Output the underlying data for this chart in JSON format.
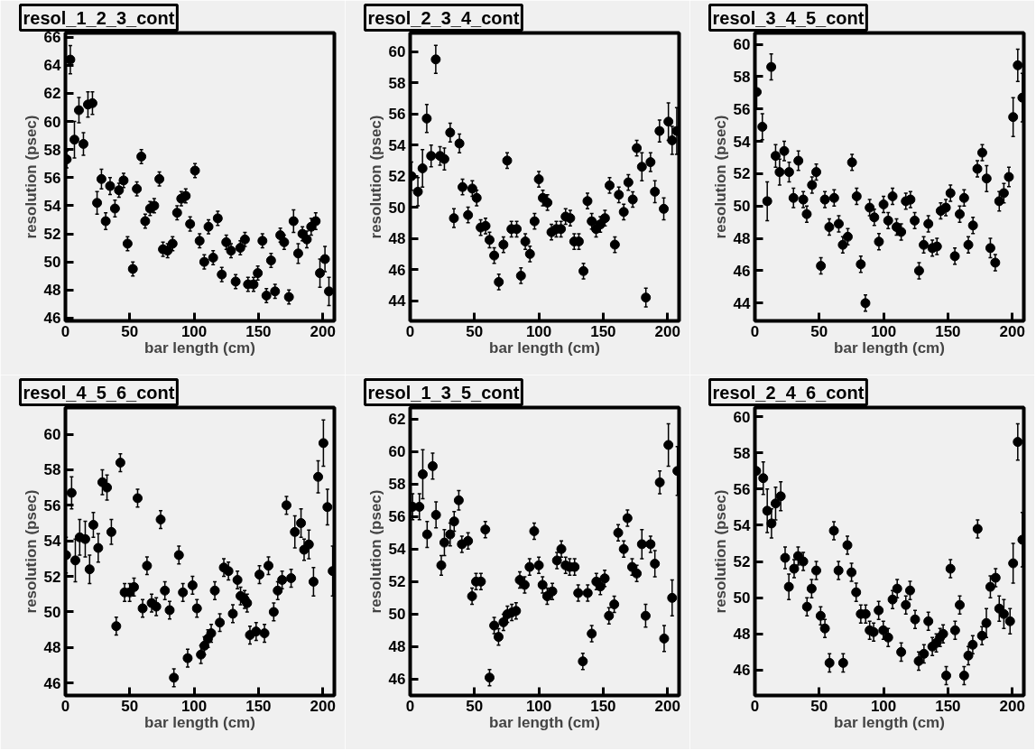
{
  "chart_data": [
    {
      "type": "scatter",
      "title": "resol_1_2_3_cont",
      "xlabel": "bar length (cm)",
      "ylabel": "resolution (psec)",
      "xlim": [
        0,
        209
      ],
      "xticks": [
        0,
        50,
        100,
        150,
        200
      ],
      "ylim": [
        45.8,
        66.3
      ],
      "yticks": [
        46,
        48,
        50,
        52,
        54,
        56,
        58,
        60,
        62,
        64,
        66
      ],
      "marker": "circle",
      "x": [
        1,
        3.8,
        7,
        10.5,
        14,
        17.5,
        21,
        24.6,
        28,
        31.3,
        34.7,
        38.5,
        41.6,
        45.2,
        48.3,
        52.4,
        55.5,
        59,
        62,
        65.8,
        69,
        73,
        75.8,
        79.4,
        83.3,
        86.8,
        90,
        93.5,
        96.9,
        100.7,
        104.3,
        107.9,
        111.2,
        114.8,
        118.4,
        121.5,
        125,
        128.7,
        132.3,
        135.9,
        139.5,
        141.9,
        146.2,
        149.5,
        153.1,
        156.2,
        159.8,
        162.9,
        167,
        170,
        173.7,
        177.3,
        180.9,
        184.2,
        187.6,
        191,
        194.5,
        197.8,
        201.7,
        204.8
      ],
      "series": [
        {
          "color": "#000000",
          "values": [
            57.3,
            64.4,
            58.7,
            60.8,
            58.4,
            61.2,
            61.3,
            54.2,
            55.9,
            52.9,
            55.4,
            53.8,
            55.1,
            55.8,
            51.3,
            49.5,
            55.2,
            57.5,
            52.9,
            53.8,
            54,
            55.9,
            50.9,
            50.8,
            51.3,
            53.5,
            54.5,
            54.7,
            52.7,
            56.5,
            51.5,
            50,
            52.5,
            50.3,
            53.1,
            49.1,
            51.4,
            50.8,
            48.6,
            51,
            51.6,
            48.4,
            48.4,
            49.2,
            51.5,
            47.6,
            50.1,
            47.9,
            51.9,
            51.4,
            47.5,
            52.9,
            50.6,
            52,
            51.6,
            52.5,
            52.9,
            49.2,
            50.2,
            47.9
          ],
          "errors": [
            0.6,
            1.0,
            1.3,
            0.9,
            0.8,
            0.9,
            0.8,
            0.8,
            0.7,
            0.6,
            0.6,
            0.6,
            0.5,
            0.5,
            0.5,
            0.5,
            0.5,
            0.5,
            0.5,
            0.5,
            0.5,
            0.5,
            0.5,
            0.5,
            0.5,
            0.5,
            0.5,
            0.5,
            0.5,
            0.5,
            0.5,
            0.5,
            0.5,
            0.5,
            0.5,
            0.5,
            0.5,
            0.5,
            0.5,
            0.5,
            0.5,
            0.5,
            0.5,
            0.5,
            0.5,
            0.5,
            0.5,
            0.5,
            0.5,
            0.5,
            0.5,
            0.8,
            0.7,
            0.5,
            0.6,
            0.6,
            0.6,
            1.0,
            0.9,
            1.0
          ]
        }
      ]
    },
    {
      "type": "scatter",
      "title": "resol_2_3_4_cont",
      "xlabel": "bar length (cm)",
      "ylabel": "resolution (psec)",
      "xlim": [
        0,
        209
      ],
      "xticks": [
        0,
        50,
        100,
        150,
        200
      ],
      "ylim": [
        42.7,
        61.2
      ],
      "yticks": [
        44,
        46,
        48,
        50,
        52,
        54,
        56,
        58,
        60
      ],
      "marker": "circle",
      "x": [
        1,
        6,
        9.6,
        12.9,
        16.3,
        19.9,
        23.2,
        26.6,
        31.1,
        34,
        38.3,
        40.7,
        45,
        48.3,
        51.7,
        54.8,
        58.6,
        61.7,
        65.3,
        68.9,
        72.5,
        75.4,
        78.7,
        82.8,
        86.1,
        89.5,
        93.1,
        96.7,
        100,
        103.1,
        106.7,
        109.8,
        113.6,
        117.2,
        120.8,
        124.4,
        127.5,
        131.1,
        134.7,
        137.8,
        141.1,
        144.5,
        147.8,
        151.4,
        155,
        159.1,
        162.2,
        166,
        169.6,
        173,
        176.1,
        180.1,
        183.2,
        186.8,
        190.2,
        193.8,
        197.1,
        200.7,
        203.6,
        207.2
      ],
      "series": [
        {
          "color": "#000000",
          "values": [
            52.0,
            51.0,
            52.5,
            55.7,
            53.3,
            59.5,
            53.3,
            53.1,
            54.8,
            49.3,
            54.1,
            51.3,
            49.5,
            51.2,
            50.6,
            48.7,
            48.8,
            47.9,
            46.9,
            45.2,
            47.6,
            53,
            48.6,
            48.6,
            45.6,
            47.8,
            47,
            49.1,
            51.8,
            50.6,
            50.3,
            48.4,
            48.6,
            48.6,
            49.4,
            49.3,
            47.8,
            47.8,
            45.9,
            50.4,
            49.1,
            48.6,
            48.9,
            49.3,
            51.4,
            47.6,
            50.8,
            49.7,
            51.6,
            50.5,
            53.8,
            52.6,
            44.2,
            52.9,
            51,
            54.9,
            49.9,
            55.5,
            54.3,
            54.9
          ],
          "errors": [
            0.9,
            0.9,
            1.2,
            0.9,
            0.7,
            0.9,
            0.6,
            0.7,
            0.6,
            0.6,
            0.6,
            0.5,
            0.5,
            0.5,
            0.5,
            0.5,
            0.5,
            0.5,
            0.5,
            0.5,
            0.5,
            0.5,
            0.5,
            0.5,
            0.5,
            0.5,
            0.5,
            0.5,
            0.5,
            0.5,
            0.5,
            0.5,
            0.5,
            0.5,
            0.5,
            0.5,
            0.5,
            0.5,
            0.5,
            0.5,
            0.5,
            0.5,
            0.5,
            0.5,
            0.5,
            0.5,
            0.5,
            0.5,
            0.5,
            0.5,
            0.5,
            0.9,
            0.6,
            0.6,
            0.7,
            0.7,
            0.7,
            1.2,
            0.9,
            1.5
          ]
        }
      ]
    },
    {
      "type": "scatter",
      "title": "resol_3_4_5_cont",
      "xlabel": "bar length (cm)",
      "ylabel": "resolution (psec)",
      "xlim": [
        0,
        209
      ],
      "xticks": [
        0,
        50,
        100,
        150,
        200
      ],
      "ylim": [
        42.9,
        60.7
      ],
      "yticks": [
        44,
        46,
        48,
        50,
        52,
        54,
        56,
        58,
        60
      ],
      "marker": "circle",
      "x": [
        1.4,
        5.8,
        9.6,
        12.7,
        16.1,
        19.2,
        22.8,
        26.6,
        30,
        33.8,
        37.6,
        40.3,
        44.4,
        47.7,
        51.3,
        54.4,
        57.8,
        61.6,
        65.2,
        68.3,
        72.2,
        75.5,
        79.1,
        82.3,
        85.9,
        89.2,
        92.8,
        96.4,
        100,
        103.6,
        107,
        110.1,
        113.7,
        117.3,
        120.9,
        124.2,
        127.6,
        131.2,
        134.8,
        137.9,
        141.5,
        144.4,
        148.4,
        152,
        155.4,
        159.2,
        162.6,
        165.9,
        169.5,
        172.9,
        176.7,
        180.1,
        183,
        186.8,
        189.9,
        193.5,
        197.4,
        200.7,
        204.3,
        207.9
      ],
      "series": [
        {
          "color": "#000000",
          "values": [
            57.05,
            54.9,
            50.3,
            58.6,
            53.1,
            52.1,
            53.4,
            52.1,
            50.5,
            52.8,
            50.4,
            49.5,
            51.3,
            52.1,
            46.3,
            50.4,
            48.7,
            50.5,
            48.9,
            47.6,
            48.1,
            52.7,
            50.6,
            46.4,
            44,
            49.9,
            49.3,
            47.8,
            50.1,
            49.1,
            50.6,
            48.7,
            48.4,
            50.3,
            50.4,
            49.1,
            46,
            47.6,
            48.9,
            47.4,
            47.5,
            49.7,
            49.9,
            50.8,
            46.9,
            49.5,
            50.5,
            47.6,
            48.8,
            52.3,
            53.3,
            51.7,
            47.4,
            46.5,
            50.3,
            50.8,
            51.8,
            55.5,
            58.7,
            56.7
          ],
          "errors": [
            1.0,
            0.8,
            1.2,
            0.8,
            0.7,
            0.8,
            0.6,
            0.6,
            0.6,
            0.6,
            0.5,
            0.5,
            0.5,
            0.5,
            0.5,
            0.5,
            0.5,
            0.5,
            0.5,
            0.5,
            0.5,
            0.5,
            0.5,
            0.5,
            0.5,
            0.5,
            0.5,
            0.5,
            0.5,
            0.5,
            0.5,
            0.5,
            0.5,
            0.5,
            0.5,
            0.5,
            0.5,
            0.5,
            0.5,
            0.5,
            0.5,
            0.5,
            0.5,
            0.5,
            0.5,
            0.5,
            0.5,
            0.5,
            0.5,
            0.5,
            0.5,
            0.8,
            0.6,
            0.5,
            0.6,
            0.6,
            0.6,
            1.2,
            1.0,
            1.5
          ]
        }
      ]
    },
    {
      "type": "scatter",
      "title": "resol_4_5_6_cont",
      "xlabel": "bar length (cm)",
      "ylabel": "resolution (psec)",
      "xlim": [
        0,
        209
      ],
      "xticks": [
        0,
        50,
        100,
        150,
        200
      ],
      "ylim": [
        45.3,
        61.5
      ],
      "yticks": [
        46,
        48,
        50,
        52,
        54,
        56,
        58,
        60
      ],
      "marker": "circle",
      "x": [
        0.5,
        4.8,
        7.7,
        11.1,
        15.4,
        18.8,
        21.7,
        25.5,
        28.7,
        32.3,
        35.7,
        39.5,
        42.7,
        46,
        49.9,
        53.3,
        56.1,
        60,
        63.4,
        67,
        70.6,
        74,
        77.3,
        81,
        84.3,
        88.2,
        91.3,
        95,
        98.8,
        102.2,
        105.3,
        108,
        110.8,
        113.3,
        116.1,
        120,
        123.1,
        126.7,
        130.1,
        133.7,
        136.1,
        139.3,
        141.2,
        143.4,
        148.2,
        150.8,
        154.7,
        157.8,
        161.9,
        165,
        168.4,
        171.8,
        175.4,
        178.3,
        183.1,
        185.5,
        189.2,
        192.8,
        196.4,
        200.5,
        203.6,
        207.7
      ],
      "series": [
        {
          "color": "#000000",
          "values": [
            53.2,
            56.7,
            52.9,
            54.2,
            54.1,
            52.4,
            54.9,
            53.6,
            57.3,
            57,
            54.5,
            49.2,
            58.4,
            51.1,
            51.1,
            51.4,
            56.4,
            50.2,
            52.6,
            50.5,
            50.3,
            55.2,
            51.2,
            50.1,
            46.3,
            53.2,
            51.1,
            47.4,
            51.5,
            50.2,
            47.6,
            48.1,
            48.5,
            48.8,
            51.2,
            49.4,
            52.5,
            52.3,
            49.9,
            51.8,
            50.9,
            50.7,
            50.5,
            48.7,
            48.9,
            52.1,
            48.8,
            52.6,
            50,
            51.2,
            51.8,
            56,
            51.9,
            54.5,
            55,
            53.5,
            53.8,
            51.7,
            57.6,
            59.5,
            55.9,
            52.3
          ],
          "errors": [
            1.0,
            0.9,
            1.2,
            1.0,
            1.0,
            0.8,
            0.7,
            0.8,
            0.7,
            0.7,
            0.7,
            0.5,
            0.5,
            0.5,
            0.5,
            0.5,
            0.5,
            0.5,
            0.5,
            0.5,
            0.5,
            0.5,
            0.5,
            0.5,
            0.5,
            0.5,
            0.5,
            0.5,
            0.5,
            0.5,
            0.5,
            0.5,
            0.5,
            0.5,
            0.5,
            0.5,
            0.5,
            0.5,
            0.5,
            0.5,
            0.5,
            0.5,
            0.5,
            0.5,
            0.5,
            0.5,
            0.5,
            0.5,
            0.5,
            0.5,
            0.5,
            0.5,
            0.5,
            0.9,
            0.8,
            0.6,
            0.8,
            0.8,
            0.9,
            1.3,
            1.0,
            1.4
          ]
        }
      ]
    },
    {
      "type": "scatter",
      "title": "resol_1_3_5_cont",
      "xlabel": "bar length (cm)",
      "ylabel": "resolution (psec)",
      "xlim": [
        0,
        209
      ],
      "xticks": [
        0,
        50,
        100,
        150,
        200
      ],
      "ylim": [
        45.0,
        62.7
      ],
      "yticks": [
        46,
        48,
        50,
        52,
        54,
        56,
        58,
        60,
        62
      ],
      "marker": "circle",
      "x": [
        1.9,
        7.2,
        9.8,
        13.2,
        17.5,
        20.1,
        24.2,
        26.6,
        31.1,
        34.2,
        37.8,
        40.2,
        45,
        48.1,
        51.2,
        55,
        58.4,
        61.7,
        65.3,
        68.7,
        72.5,
        75.6,
        79,
        82.3,
        85.2,
        89,
        92.8,
        96.4,
        100,
        102.9,
        106.5,
        110.5,
        114.1,
        117.5,
        120.8,
        124,
        127.8,
        130.6,
        134.2,
        138,
        141.1,
        144.7,
        147.8,
        151.2,
        154.5,
        158.6,
        161.7,
        166,
        168.9,
        172.5,
        176.1,
        180.1,
        183,
        186.8,
        190.2,
        194,
        197.4,
        200.7,
        203.6,
        207.7
      ],
      "series": [
        {
          "color": "#000000",
          "values": [
            56.6,
            56.6,
            58.6,
            54.9,
            59.1,
            56.1,
            53,
            54.4,
            54.9,
            55.7,
            57,
            54.3,
            54.5,
            51.1,
            52,
            52,
            55.2,
            46.1,
            49.3,
            48.6,
            49.5,
            50,
            50.1,
            50.2,
            52.1,
            51.8,
            52.9,
            55.1,
            53,
            51.8,
            51.1,
            51.4,
            53.3,
            54,
            53,
            52.9,
            52.9,
            51.3,
            47.1,
            51.3,
            48.8,
            52,
            51.7,
            52.2,
            49.9,
            50.6,
            55,
            54,
            55.9,
            52.9,
            52.5,
            54.3,
            49.9,
            54.3,
            53.1,
            58.1,
            48.5,
            60.4,
            51,
            58.8
          ],
          "errors": [
            0.8,
            0.8,
            1.5,
            0.8,
            0.8,
            0.8,
            0.6,
            0.8,
            0.7,
            0.6,
            0.6,
            0.5,
            0.5,
            0.5,
            0.5,
            0.5,
            0.5,
            0.5,
            0.5,
            0.5,
            0.5,
            0.5,
            0.5,
            0.5,
            0.5,
            0.5,
            0.5,
            0.5,
            0.5,
            0.5,
            0.5,
            0.5,
            0.5,
            0.5,
            0.5,
            0.5,
            0.5,
            0.5,
            0.5,
            0.5,
            0.5,
            0.5,
            0.5,
            0.5,
            0.5,
            0.5,
            0.5,
            0.5,
            0.5,
            0.5,
            0.5,
            0.9,
            0.7,
            0.5,
            0.8,
            0.7,
            0.8,
            1.3,
            1.1,
            1.5
          ]
        }
      ]
    },
    {
      "type": "scatter",
      "title": "resol_2_4_6_cont",
      "xlabel": "bar length (cm)",
      "ylabel": "resolution (psec)",
      "xlim": [
        0,
        209
      ],
      "xticks": [
        0,
        50,
        100,
        150,
        200
      ],
      "ylim": [
        44.6,
        60.5
      ],
      "yticks": [
        46,
        48,
        50,
        52,
        54,
        56,
        58,
        60
      ],
      "marker": "circle",
      "x": [
        1,
        6.5,
        9.6,
        12.9,
        16.1,
        20.1,
        23.5,
        26.4,
        30.5,
        33.6,
        37.6,
        40.5,
        44.1,
        47.7,
        51.1,
        54.4,
        58,
        61.4,
        65,
        68.6,
        71.9,
        75.1,
        78.7,
        82.3,
        86.1,
        89.2,
        92.3,
        96.2,
        99.8,
        103.6,
        107,
        110.6,
        113.7,
        117.3,
        120.6,
        124.5,
        127.3,
        131.4,
        134.8,
        137.9,
        141,
        143.9,
        146.3,
        148.7,
        152,
        155.6,
        159.2,
        162.6,
        165.9,
        169.3,
        173.1,
        176.5,
        179.9,
        183,
        187.1,
        189.9,
        193.5,
        198.3,
        200.7,
        204.3,
        207.9
      ],
      "series": [
        {
          "color": "#000000",
          "values": [
            57.0,
            56.6,
            54.8,
            54.1,
            55.2,
            55.6,
            52.2,
            50.6,
            51.6,
            52.3,
            52,
            49.5,
            50.5,
            51.5,
            49,
            48.3,
            46.4,
            53.7,
            51.5,
            46.4,
            52.9,
            51.4,
            50.3,
            49.1,
            49.1,
            48.2,
            48.1,
            49.3,
            48.2,
            47.8,
            49.9,
            50.5,
            47,
            49.6,
            50.4,
            48.8,
            46.5,
            46.9,
            48.7,
            47.3,
            47.5,
            47.8,
            48,
            45.7,
            51.6,
            48.2,
            49.6,
            45.7,
            46.8,
            47.4,
            53.8,
            47.9,
            48.6,
            50.6,
            51.1,
            49.4,
            49.1,
            48.7,
            51.9,
            58.6,
            53.2
          ],
          "errors": [
            1.0,
            0.9,
            1.2,
            0.8,
            0.9,
            0.8,
            0.6,
            0.7,
            0.5,
            0.5,
            0.5,
            0.5,
            0.5,
            0.5,
            0.5,
            0.5,
            0.5,
            0.5,
            0.5,
            0.5,
            0.5,
            0.5,
            0.5,
            0.5,
            0.5,
            0.5,
            0.5,
            0.5,
            0.5,
            0.5,
            0.5,
            0.5,
            0.5,
            0.5,
            0.5,
            0.5,
            0.5,
            0.5,
            0.5,
            0.5,
            0.5,
            0.5,
            0.5,
            0.5,
            0.5,
            0.5,
            0.5,
            0.5,
            0.5,
            0.5,
            0.5,
            0.5,
            0.8,
            0.6,
            0.5,
            0.7,
            0.8,
            0.7,
            1.1,
            1.0,
            1.5
          ]
        }
      ]
    }
  ]
}
